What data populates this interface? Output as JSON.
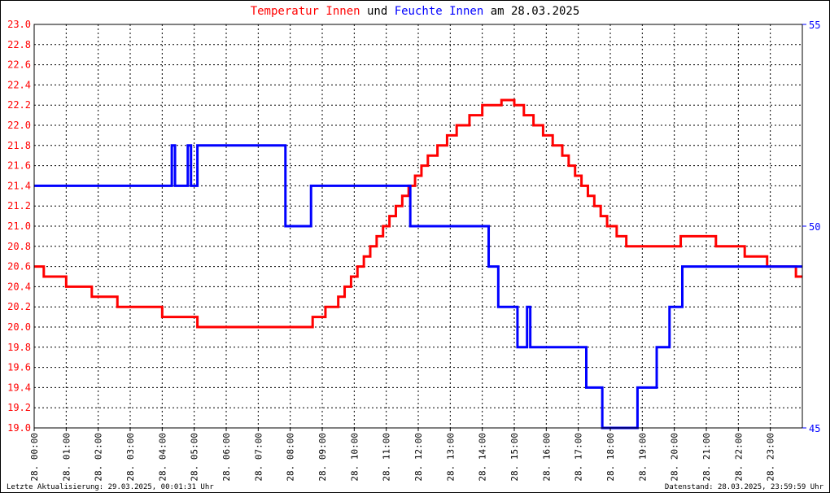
{
  "title_parts": {
    "a": "Temperatur Innen",
    "b": " und ",
    "c": "Feuchte Innen",
    "d": " am 28.03.2025"
  },
  "footer": {
    "left": "Letzte Aktualisierung: 29.03.2025, 00:01:31 Uhr",
    "right": "Datenstand: 28.03.2025, 23:59:59 Uhr"
  },
  "colors": {
    "temperature": "#ff0000",
    "humidity": "#0000ff",
    "grid": "#000000",
    "frame": "#000000",
    "title_text": "#000000"
  },
  "chart_data": {
    "type": "line",
    "grid": true,
    "x_range_hours": [
      0,
      24
    ],
    "x_tick_labels": [
      "28. 00:00",
      "28. 01:00",
      "28. 02:00",
      "28. 03:00",
      "28. 04:00",
      "28. 05:00",
      "28. 06:00",
      "28. 07:00",
      "28. 08:00",
      "28. 09:00",
      "28. 10:00",
      "28. 11:00",
      "28. 12:00",
      "28. 13:00",
      "28. 14:00",
      "28. 15:00",
      "28. 16:00",
      "28. 17:00",
      "28. 18:00",
      "28. 19:00",
      "28. 20:00",
      "28. 21:00",
      "28. 22:00",
      "28. 23:00"
    ],
    "y_left": {
      "range": [
        19.0,
        23.0
      ],
      "ticks": [
        "19.0",
        "19.2",
        "19.4",
        "19.6",
        "19.8",
        "20.0",
        "20.2",
        "20.4",
        "20.6",
        "20.8",
        "21.0",
        "21.2",
        "21.4",
        "21.6",
        "21.8",
        "22.0",
        "22.2",
        "22.4",
        "22.6",
        "22.8",
        "23.0"
      ]
    },
    "y_right": {
      "range": [
        45,
        55
      ],
      "ticks": [
        "45",
        "50",
        "55"
      ]
    },
    "series": [
      {
        "name": "Temperatur Innen",
        "axis": "left",
        "points": [
          [
            0.0,
            20.6
          ],
          [
            0.3,
            20.5
          ],
          [
            1.0,
            20.4
          ],
          [
            1.8,
            20.3
          ],
          [
            2.6,
            20.2
          ],
          [
            4.0,
            20.1
          ],
          [
            5.1,
            20.0
          ],
          [
            7.8,
            20.0
          ],
          [
            8.7,
            20.1
          ],
          [
            9.1,
            20.2
          ],
          [
            9.5,
            20.3
          ],
          [
            9.7,
            20.4
          ],
          [
            9.9,
            20.5
          ],
          [
            10.1,
            20.6
          ],
          [
            10.3,
            20.7
          ],
          [
            10.5,
            20.8
          ],
          [
            10.7,
            20.9
          ],
          [
            10.9,
            21.0
          ],
          [
            11.1,
            21.1
          ],
          [
            11.3,
            21.2
          ],
          [
            11.5,
            21.3
          ],
          [
            11.7,
            21.4
          ],
          [
            11.9,
            21.5
          ],
          [
            12.1,
            21.6
          ],
          [
            12.3,
            21.7
          ],
          [
            12.6,
            21.8
          ],
          [
            12.9,
            21.9
          ],
          [
            13.2,
            22.0
          ],
          [
            13.6,
            22.1
          ],
          [
            14.0,
            22.2
          ],
          [
            14.6,
            22.25
          ],
          [
            15.0,
            22.2
          ],
          [
            15.3,
            22.1
          ],
          [
            15.6,
            22.0
          ],
          [
            15.9,
            21.9
          ],
          [
            16.2,
            21.8
          ],
          [
            16.5,
            21.7
          ],
          [
            16.7,
            21.6
          ],
          [
            16.9,
            21.5
          ],
          [
            17.1,
            21.4
          ],
          [
            17.3,
            21.3
          ],
          [
            17.5,
            21.2
          ],
          [
            17.7,
            21.1
          ],
          [
            17.9,
            21.0
          ],
          [
            18.2,
            20.9
          ],
          [
            18.5,
            20.8
          ],
          [
            20.0,
            20.8
          ],
          [
            20.2,
            20.9
          ],
          [
            21.3,
            20.8
          ],
          [
            22.2,
            20.7
          ],
          [
            22.9,
            20.6
          ],
          [
            23.8,
            20.5
          ],
          [
            24.0,
            20.5
          ]
        ]
      },
      {
        "name": "Feuchte Innen",
        "axis": "right",
        "points": [
          [
            0.0,
            51
          ],
          [
            4.3,
            52
          ],
          [
            4.4,
            51
          ],
          [
            4.8,
            52
          ],
          [
            4.9,
            51
          ],
          [
            5.1,
            52
          ],
          [
            7.8,
            52
          ],
          [
            7.85,
            50
          ],
          [
            8.6,
            50
          ],
          [
            8.65,
            51
          ],
          [
            11.7,
            51
          ],
          [
            11.75,
            50
          ],
          [
            14.1,
            50
          ],
          [
            14.2,
            49
          ],
          [
            14.5,
            48.0
          ],
          [
            15.0,
            48.0
          ],
          [
            15.1,
            47.0
          ],
          [
            15.4,
            48.0
          ],
          [
            15.5,
            47.0
          ],
          [
            17.2,
            47
          ],
          [
            17.25,
            46
          ],
          [
            17.7,
            46
          ],
          [
            17.75,
            45
          ],
          [
            18.8,
            45
          ],
          [
            18.85,
            46
          ],
          [
            19.4,
            46
          ],
          [
            19.45,
            47
          ],
          [
            19.8,
            47
          ],
          [
            19.85,
            48
          ],
          [
            20.2,
            48
          ],
          [
            20.25,
            49
          ],
          [
            24.0,
            49
          ]
        ]
      }
    ]
  }
}
